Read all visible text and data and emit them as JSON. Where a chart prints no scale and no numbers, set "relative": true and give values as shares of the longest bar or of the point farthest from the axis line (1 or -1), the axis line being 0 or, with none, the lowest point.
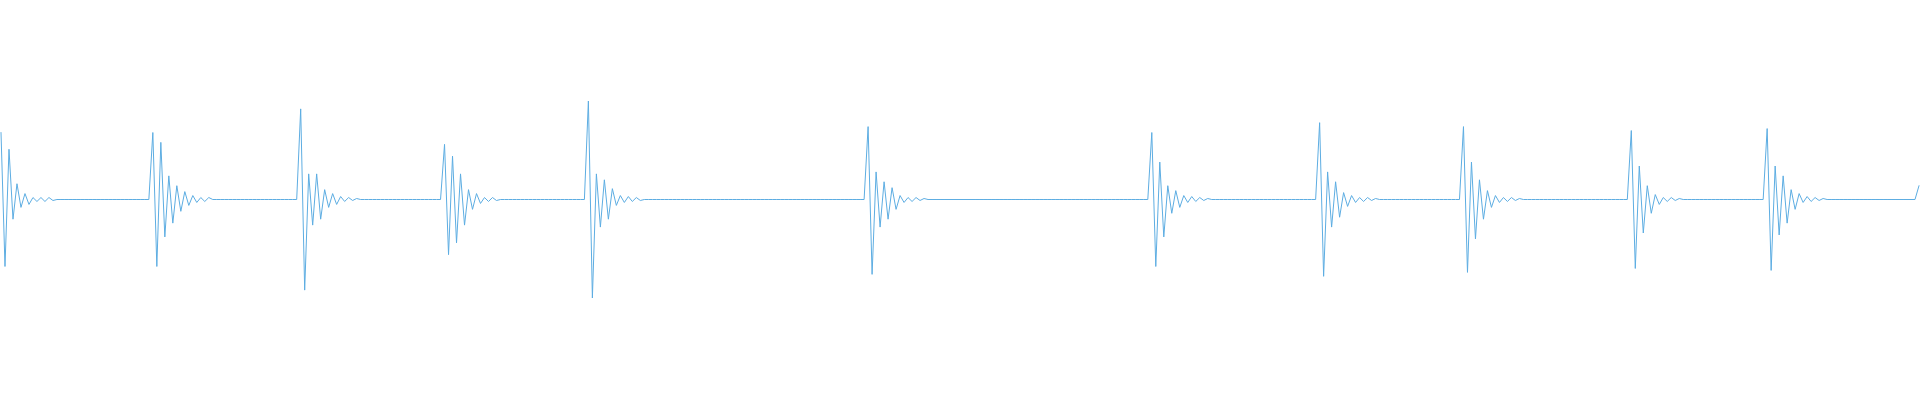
{
  "chart_data": {
    "type": "line",
    "relative": true,
    "color": "#5dade2",
    "categories": [
      null,
      null,
      null,
      null,
      null,
      null,
      null,
      null,
      null,
      null,
      null,
      null,
      null,
      null,
      null,
      null,
      null,
      null,
      null,
      null,
      null,
      null,
      null,
      null,
      null,
      null,
      null,
      null,
      null,
      null,
      null,
      null,
      null,
      null,
      null,
      null,
      null,
      null,
      null,
      null,
      null,
      null,
      null,
      null,
      null,
      null,
      null,
      null,
      null,
      null,
      null,
      null,
      null,
      null,
      null,
      null,
      null,
      null,
      null,
      null,
      null,
      null,
      null,
      null,
      null,
      null,
      null,
      null,
      null,
      null,
      null,
      null,
      null,
      null,
      null,
      null,
      null,
      null,
      null,
      null,
      null,
      null,
      null,
      null,
      null,
      null,
      null,
      null,
      null,
      null,
      null,
      null,
      null,
      null,
      null,
      null,
      null,
      null,
      null,
      null,
      null,
      null,
      null,
      null,
      null,
      null,
      null,
      null,
      null,
      null,
      null,
      null,
      null,
      null,
      null,
      null,
      null,
      null,
      null,
      null,
      null,
      null,
      null,
      null,
      null,
      null,
      null,
      null,
      null,
      null,
      null,
      null,
      null,
      null,
      null,
      null,
      null,
      null,
      null,
      null,
      null,
      null,
      null,
      null,
      null,
      null,
      null,
      null,
      null,
      null,
      null,
      null,
      null,
      null,
      null,
      null,
      null,
      null,
      null,
      null,
      null,
      null,
      null,
      null,
      null,
      null,
      null,
      null,
      null,
      null,
      null,
      null,
      null,
      null,
      null,
      null,
      null,
      null,
      null,
      null,
      null,
      null,
      null,
      null,
      null,
      null,
      null,
      null,
      null,
      null,
      null,
      null,
      null,
      null,
      null,
      null,
      null,
      null,
      null,
      null,
      null,
      null,
      null,
      null,
      null,
      null,
      null,
      null,
      null,
      null,
      null,
      null,
      null,
      null,
      null,
      null,
      null,
      null,
      null,
      null,
      null,
      null,
      null,
      null,
      null,
      null,
      null,
      null,
      null,
      null,
      null,
      null,
      null,
      null,
      null,
      null,
      null,
      null,
      null,
      null,
      null,
      null,
      null,
      null,
      null,
      null,
      null,
      null,
      null,
      null,
      null,
      null,
      null,
      null,
      null,
      null,
      null,
      null,
      null,
      null,
      null,
      null,
      null,
      null,
      null,
      null,
      null,
      null,
      null,
      null,
      null,
      null,
      null,
      null,
      null,
      null,
      null,
      null,
      null,
      null,
      null,
      null,
      null,
      null,
      null,
      null,
      null,
      null,
      null,
      null,
      null,
      null,
      null,
      null,
      null,
      null,
      null,
      null,
      null,
      null,
      null,
      null,
      null,
      null,
      null,
      null,
      null,
      null,
      null,
      null,
      null,
      null,
      null,
      null,
      null,
      null,
      null,
      null,
      null,
      null,
      null,
      null,
      null,
      null,
      null,
      null,
      null,
      null,
      null,
      null,
      null,
      null,
      null,
      null,
      null,
      null,
      null,
      null,
      null,
      null,
      null,
      null,
      null,
      null,
      null,
      null,
      null,
      null,
      null,
      null,
      null,
      null,
      null,
      null,
      null,
      null,
      null,
      null,
      null,
      null,
      null,
      null,
      null,
      null,
      null,
      null,
      null,
      null,
      null,
      null,
      null,
      null,
      null,
      null,
      null,
      null,
      null,
      null,
      null,
      null,
      null,
      null,
      null,
      null,
      null,
      null,
      null,
      null,
      null,
      null,
      null,
      null,
      null,
      null,
      null,
      null,
      null,
      null,
      null,
      null,
      null,
      null,
      null,
      null,
      null,
      null,
      null,
      null,
      null,
      null,
      null,
      null,
      null,
      null,
      null,
      null,
      null,
      null,
      null,
      null,
      null,
      null,
      null,
      null,
      null,
      null,
      null,
      null,
      null,
      null,
      null,
      null,
      null,
      null,
      null,
      null,
      null,
      null,
      null,
      null,
      null,
      null,
      null,
      null,
      null,
      null,
      null,
      null,
      null,
      null,
      null,
      null,
      null,
      null,
      null,
      null,
      null,
      null,
      null,
      null,
      null,
      null,
      null,
      null,
      null,
      null,
      null,
      null,
      null,
      null,
      null,
      null,
      null,
      null,
      null,
      null,
      null,
      null,
      null,
      null,
      null
    ],
    "values": [
      0.84,
      0.16,
      0.755,
      0.4,
      0.58,
      0.46,
      0.53,
      0.475,
      0.51,
      0.49,
      0.51,
      0.49,
      0.51,
      0.495,
      0.5,
      0.5,
      0.5,
      0.5,
      0.5,
      0.5,
      0.5,
      0.5,
      0.5,
      0.5,
      0.5,
      0.5,
      0.5,
      0.5,
      0.5,
      0.5,
      0.5,
      0.5,
      0.5,
      0.5,
      0.5,
      0.5,
      0.5,
      0.5,
      0.84,
      0.16,
      0.79,
      0.31,
      0.62,
      0.38,
      0.57,
      0.44,
      0.54,
      0.47,
      0.52,
      0.485,
      0.51,
      0.49,
      0.51,
      0.5,
      0.5,
      0.5,
      0.5,
      0.5,
      0.5,
      0.5,
      0.5,
      0.5,
      0.5,
      0.5,
      0.5,
      0.5,
      0.5,
      0.5,
      0.5,
      0.5,
      0.5,
      0.5,
      0.5,
      0.5,
      0.5,
      0.96,
      0.04,
      0.63,
      0.37,
      0.63,
      0.4,
      0.55,
      0.46,
      0.53,
      0.475,
      0.515,
      0.49,
      0.51,
      0.495,
      0.505,
      0.5,
      0.5,
      0.5,
      0.5,
      0.5,
      0.5,
      0.5,
      0.5,
      0.5,
      0.5,
      0.5,
      0.5,
      0.5,
      0.5,
      0.5,
      0.5,
      0.5,
      0.5,
      0.5,
      0.5,
      0.5,
      0.78,
      0.22,
      0.72,
      0.28,
      0.63,
      0.37,
      0.55,
      0.45,
      0.53,
      0.48,
      0.51,
      0.49,
      0.51,
      0.495,
      0.5,
      0.5,
      0.5,
      0.5,
      0.5,
      0.5,
      0.5,
      0.5,
      0.5,
      0.5,
      0.5,
      0.5,
      0.5,
      0.5,
      0.5,
      0.5,
      0.5,
      0.5,
      0.5,
      0.5,
      0.5,
      0.5,
      1,
      0,
      0.63,
      0.36,
      0.6,
      0.4,
      0.555,
      0.47,
      0.52,
      0.485,
      0.515,
      0.49,
      0.51,
      0.495,
      0.5,
      0.5,
      0.5,
      0.5,
      0.5,
      0.5,
      0.5,
      0.5,
      0.5,
      0.5,
      0.5,
      0.5,
      0.5,
      0.5,
      0.5,
      0.5,
      0.5,
      0.5,
      0.5,
      0.5,
      0.5,
      0.5,
      0.5,
      0.5,
      0.5,
      0.5,
      0.5,
      0.5,
      0.5,
      0.5,
      0.5,
      0.5,
      0.5,
      0.5,
      0.5,
      0.5,
      0.5,
      0.5,
      0.5,
      0.5,
      0.5,
      0.5,
      0.5,
      0.5,
      0.5,
      0.5,
      0.5,
      0.5,
      0.5,
      0.5,
      0.5,
      0.5,
      0.5,
      0.5,
      0.5,
      0.5,
      0.87,
      0.12,
      0.64,
      0.36,
      0.59,
      0.4,
      0.56,
      0.45,
      0.52,
      0.485,
      0.51,
      0.49,
      0.51,
      0.495,
      0.505,
      0.5,
      0.5,
      0.5,
      0.5,
      0.5,
      0.5,
      0.5,
      0.5,
      0.5,
      0.5,
      0.5,
      0.5,
      0.5,
      0.5,
      0.5,
      0.5,
      0.5,
      0.5,
      0.5,
      0.5,
      0.5,
      0.5,
      0.5,
      0.5,
      0.5,
      0.5,
      0.5,
      0.5,
      0.5,
      0.5,
      0.5,
      0.5,
      0.5,
      0.5,
      0.5,
      0.5,
      0.5,
      0.5,
      0.5,
      0.5,
      0.5,
      0.5,
      0.5,
      0.5,
      0.5,
      0.5,
      0.5,
      0.5,
      0.5,
      0.5,
      0.5,
      0.5,
      0.5,
      0.5,
      0.5,
      0.5,
      0.84,
      0.16,
      0.69,
      0.31,
      0.57,
      0.43,
      0.545,
      0.46,
      0.52,
      0.485,
      0.515,
      0.49,
      0.51,
      0.495,
      0.505,
      0.5,
      0.5,
      0.5,
      0.5,
      0.5,
      0.5,
      0.5,
      0.5,
      0.5,
      0.5,
      0.5,
      0.5,
      0.5,
      0.5,
      0.5,
      0.5,
      0.5,
      0.5,
      0.5,
      0.5,
      0.5,
      0.5,
      0.5,
      0.5,
      0.5,
      0.5,
      0.5,
      0.89,
      0.11,
      0.64,
      0.36,
      0.59,
      0.41,
      0.535,
      0.465,
      0.52,
      0.485,
      0.51,
      0.49,
      0.51,
      0.495,
      0.505,
      0.5,
      0.5,
      0.5,
      0.5,
      0.5,
      0.5,
      0.5,
      0.5,
      0.5,
      0.5,
      0.5,
      0.5,
      0.5,
      0.5,
      0.5,
      0.5,
      0.5,
      0.5,
      0.5,
      0.5,
      0.5,
      0.87,
      0.13,
      0.69,
      0.3,
      0.6,
      0.4,
      0.545,
      0.46,
      0.52,
      0.485,
      0.51,
      0.49,
      0.51,
      0.495,
      0.505,
      0.5,
      0.5,
      0.5,
      0.5,
      0.5,
      0.5,
      0.5,
      0.5,
      0.5,
      0.5,
      0.5,
      0.5,
      0.5,
      0.5,
      0.5,
      0.5,
      0.5,
      0.5,
      0.5,
      0.5,
      0.5,
      0.5,
      0.5,
      0.5,
      0.5,
      0.5,
      0.5,
      0.85,
      0.15,
      0.67,
      0.33,
      0.57,
      0.43,
      0.525,
      0.475,
      0.51,
      0.49,
      0.51,
      0.495,
      0.505,
      0.5,
      0.5,
      0.5,
      0.5,
      0.5,
      0.5,
      0.5,
      0.5,
      0.5,
      0.5,
      0.5,
      0.5,
      0.5,
      0.5,
      0.5,
      0.5,
      0.5,
      0.5,
      0.5,
      0.5,
      0.5,
      0.86,
      0.14,
      0.67,
      0.32,
      0.62,
      0.38,
      0.55,
      0.45,
      0.53,
      0.485,
      0.515,
      0.49,
      0.51,
      0.495,
      0.505,
      0.5,
      0.5,
      0.5,
      0.5,
      0.5,
      0.5,
      0.5,
      0.5,
      0.5,
      0.5,
      0.5,
      0.5,
      0.5,
      0.5,
      0.5,
      0.5,
      0.5,
      0.5,
      0.5,
      0.5,
      0.5,
      0.5,
      0.5,
      0.57
    ]
  }
}
